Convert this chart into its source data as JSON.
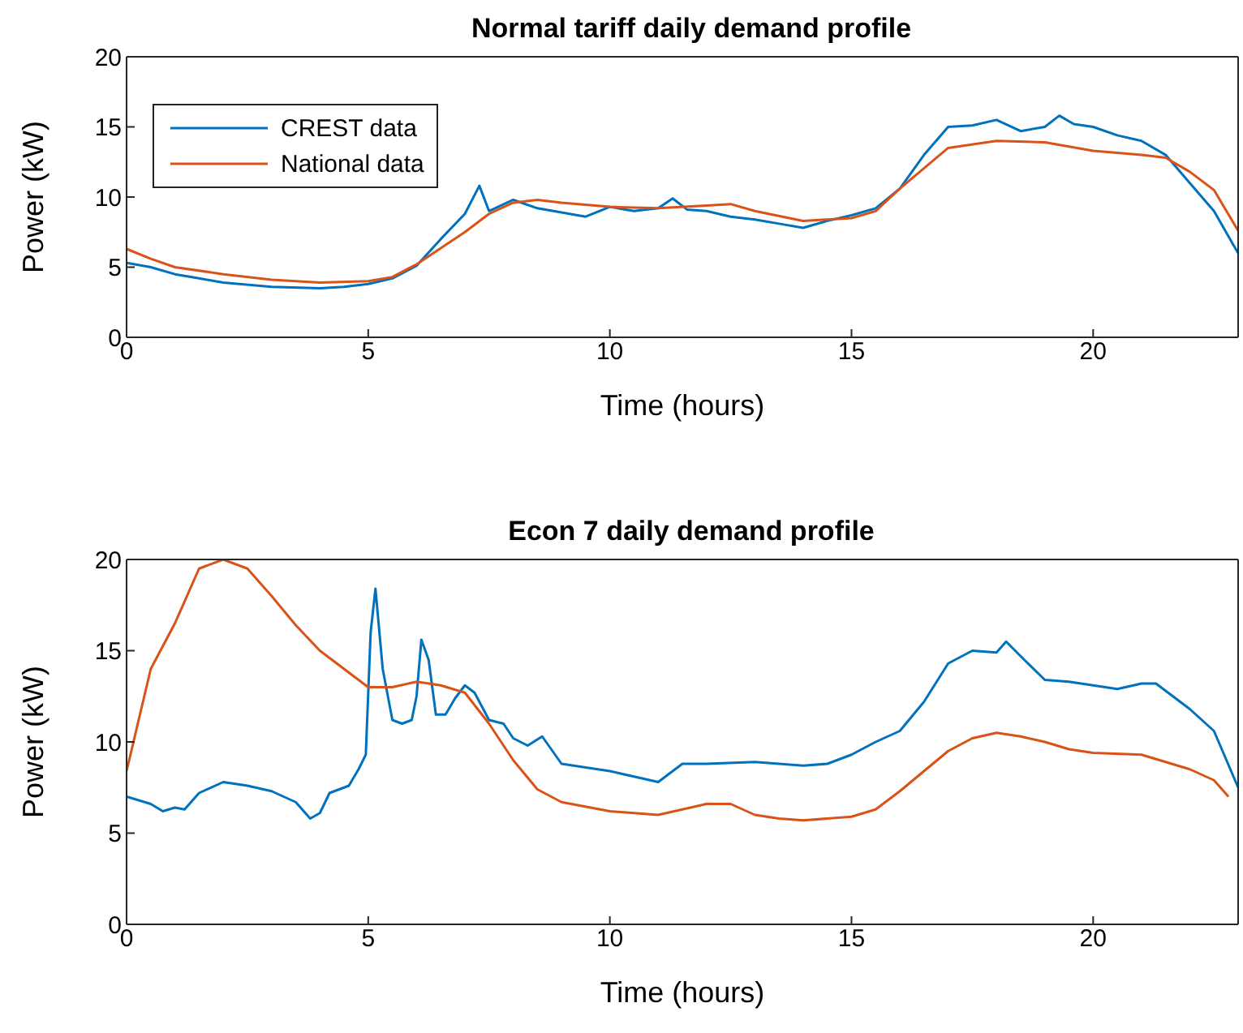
{
  "chart_data": [
    {
      "type": "line",
      "title": "Normal tariff daily demand profile",
      "xlabel": "Time (hours)",
      "ylabel": "Power (kW)",
      "xlim": [
        0,
        23
      ],
      "xticks": [
        0,
        5,
        10,
        15,
        20
      ],
      "ylim": [
        0,
        20
      ],
      "yticks": [
        0,
        5,
        10,
        15,
        20
      ],
      "legend": "top left",
      "marker": "none",
      "line_style": "solid",
      "series": [
        {
          "name": "CREST data",
          "color": "#0072bd",
          "x": [
            0,
            0.5,
            1,
            1.5,
            2,
            3,
            4,
            4.5,
            5,
            5.5,
            6,
            6.5,
            7,
            7.3,
            7.5,
            8,
            8.5,
            9,
            9.5,
            10,
            10.5,
            11,
            11.3,
            11.6,
            12,
            12.5,
            13,
            13.5,
            14,
            14.5,
            15,
            15.5,
            16,
            16.5,
            17,
            17.5,
            18,
            18.5,
            19,
            19.3,
            19.6,
            20,
            20.5,
            21,
            21.5,
            22,
            22.5,
            23
          ],
          "values": [
            5.3,
            5,
            4.5,
            4.2,
            3.9,
            3.6,
            3.5,
            3.6,
            3.8,
            4.2,
            5.1,
            7,
            8.8,
            10.8,
            9,
            9.8,
            9.2,
            8.9,
            8.6,
            9.3,
            9,
            9.2,
            9.9,
            9.1,
            9,
            8.6,
            8.4,
            8.1,
            7.8,
            8.3,
            8.7,
            9.2,
            10.6,
            13,
            15,
            15.1,
            15.5,
            14.7,
            15,
            15.8,
            15.2,
            15,
            14.4,
            14,
            13,
            11,
            9,
            6
          ]
        },
        {
          "name": "National data",
          "color": "#d95319",
          "x": [
            0,
            0.5,
            1,
            2,
            3,
            4,
            5,
            5.5,
            6,
            7,
            7.5,
            8,
            8.5,
            9,
            10,
            11,
            12,
            12.5,
            13,
            14,
            15,
            15.5,
            16,
            17,
            18,
            19,
            20,
            21,
            21.5,
            22,
            22.5,
            23
          ],
          "values": [
            6.3,
            5.6,
            5,
            4.5,
            4.1,
            3.9,
            4,
            4.3,
            5.2,
            7.5,
            8.8,
            9.6,
            9.8,
            9.6,
            9.3,
            9.2,
            9.4,
            9.5,
            9,
            8.3,
            8.5,
            9,
            10.6,
            13.5,
            14,
            13.9,
            13.3,
            13,
            12.8,
            11.8,
            10.5,
            7.6
          ]
        }
      ]
    },
    {
      "type": "line",
      "title": "Econ 7 daily demand profile",
      "xlabel": "Time (hours)",
      "ylabel": "Power (kW)",
      "xlim": [
        0,
        23
      ],
      "xticks": [
        0,
        5,
        10,
        15,
        20
      ],
      "ylim": [
        0,
        20
      ],
      "yticks": [
        0,
        5,
        10,
        15,
        20
      ],
      "legend": false,
      "marker": "none",
      "line_style": "solid",
      "series": [
        {
          "color": "#0072bd",
          "x": [
            0,
            0.5,
            0.75,
            1,
            1.2,
            1.5,
            2,
            2.5,
            3,
            3.5,
            3.8,
            4,
            4.2,
            4.6,
            4.8,
            4.95,
            5.05,
            5.15,
            5.3,
            5.5,
            5.7,
            5.9,
            6,
            6.1,
            6.25,
            6.4,
            6.6,
            6.8,
            7,
            7.2,
            7.5,
            7.8,
            8,
            8.3,
            8.6,
            9,
            9.5,
            10,
            10.5,
            11,
            11.5,
            12,
            13,
            14,
            14.5,
            15,
            15.5,
            16,
            16.5,
            17,
            17.5,
            18,
            18.2,
            18.5,
            19,
            19.5,
            20,
            20.5,
            21,
            21.3,
            21.7,
            22,
            22.5,
            23
          ],
          "values": [
            7,
            6.6,
            6.2,
            6.4,
            6.3,
            7.2,
            7.8,
            7.6,
            7.3,
            6.7,
            5.8,
            6.1,
            7.2,
            7.6,
            8.5,
            9.3,
            16,
            18.4,
            14,
            11.2,
            11,
            11.2,
            12.5,
            15.6,
            14.5,
            11.5,
            11.5,
            12.4,
            13.1,
            12.7,
            11.2,
            11,
            10.2,
            9.8,
            10.3,
            8.8,
            8.6,
            8.4,
            8.1,
            7.8,
            8.8,
            8.8,
            8.9,
            8.7,
            8.8,
            9.3,
            10,
            10.6,
            12.2,
            14.3,
            15,
            14.9,
            15.5,
            14.7,
            13.4,
            13.3,
            13.1,
            12.9,
            13.2,
            13.2,
            12.4,
            11.8,
            10.6,
            7.5
          ]
        },
        {
          "color": "#d95319",
          "x": [
            0,
            0.5,
            1,
            1.5,
            2,
            2.5,
            3,
            3.5,
            4,
            4.5,
            5,
            5.5,
            6,
            6.5,
            7,
            7.5,
            8,
            8.5,
            9,
            10,
            11,
            12,
            12.5,
            13,
            13.5,
            14,
            15,
            15.5,
            16,
            17,
            17.5,
            18,
            18.5,
            19,
            19.5,
            20,
            21,
            22,
            22.5,
            22.8
          ],
          "values": [
            8.4,
            14,
            16.5,
            19.5,
            20,
            19.5,
            18,
            16.4,
            15,
            14,
            13,
            13,
            13.3,
            13.1,
            12.7,
            11,
            9,
            7.4,
            6.7,
            6.2,
            6,
            6.6,
            6.6,
            6,
            5.8,
            5.7,
            5.9,
            6.3,
            7.3,
            9.5,
            10.2,
            10.5,
            10.3,
            10,
            9.6,
            9.4,
            9.3,
            8.5,
            7.9,
            7
          ]
        }
      ]
    }
  ]
}
